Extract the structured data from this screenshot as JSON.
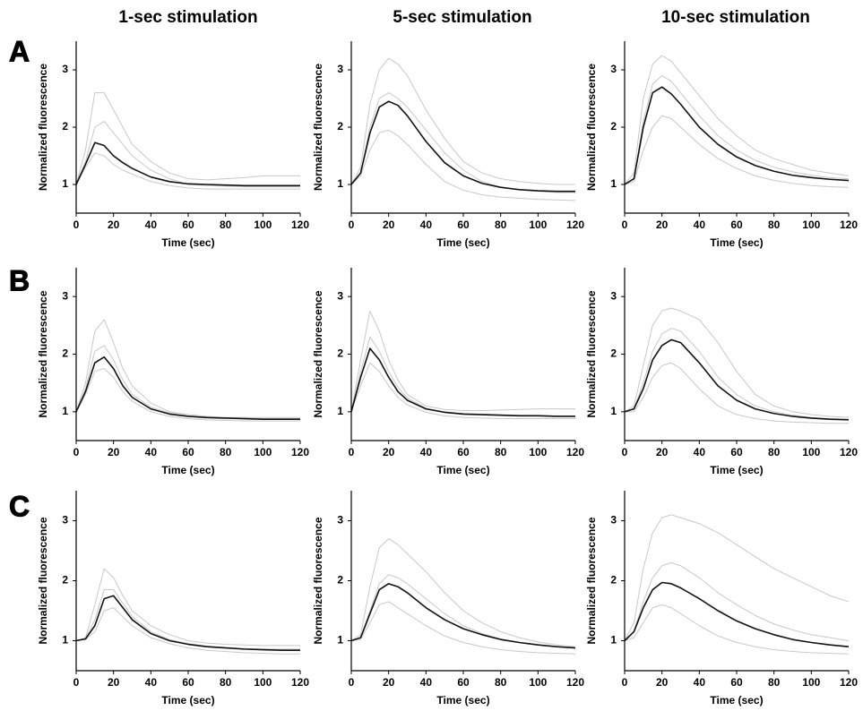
{
  "columns": [
    "1-sec stimulation",
    "5-sec stimulation",
    "10-sec stimulation"
  ],
  "rows": [
    "A",
    "B",
    "C"
  ],
  "chart_data": [
    {
      "type": "line",
      "xlabel": "Time (sec)",
      "ylabel": "Normalized fluorescence",
      "xlim": [
        0,
        120
      ],
      "xticks": [
        0,
        20,
        40,
        60,
        80,
        100,
        120
      ],
      "ylim": [
        0.5,
        3.5
      ],
      "yticks": [
        1,
        2,
        3
      ],
      "x": [
        0,
        5,
        10,
        15,
        20,
        25,
        30,
        40,
        50,
        60,
        70,
        80,
        90,
        100,
        110,
        120
      ],
      "series": [
        {
          "color": "#c8c8c8",
          "values": [
            1,
            1.6,
            2.6,
            2.6,
            2.3,
            2.0,
            1.7,
            1.4,
            1.2,
            1.1,
            1.08,
            1.1,
            1.12,
            1.15,
            1.15,
            1.15
          ]
        },
        {
          "color": "#c8c8c8",
          "values": [
            1,
            1.4,
            2.0,
            2.1,
            1.9,
            1.7,
            1.5,
            1.25,
            1.1,
            1.0,
            0.98,
            0.97,
            0.96,
            0.96,
            0.96,
            0.96
          ]
        },
        {
          "color": "#c8c8c8",
          "values": [
            1,
            1.3,
            1.55,
            1.5,
            1.35,
            1.25,
            1.18,
            1.05,
            0.98,
            0.94,
            0.92,
            0.92,
            0.92,
            0.92,
            0.92,
            0.92
          ]
        },
        {
          "color": "#111111",
          "values": [
            1,
            1.35,
            1.73,
            1.68,
            1.5,
            1.38,
            1.28,
            1.13,
            1.05,
            1.01,
            1.0,
            0.99,
            0.98,
            0.98,
            0.98,
            0.98
          ]
        }
      ]
    },
    {
      "type": "line",
      "xlabel": "Time (sec)",
      "ylabel": "Normalized fluorescence",
      "xlim": [
        0,
        120
      ],
      "xticks": [
        0,
        20,
        40,
        60,
        80,
        100,
        120
      ],
      "ylim": [
        0.5,
        3.5
      ],
      "yticks": [
        1,
        2,
        3
      ],
      "x": [
        0,
        5,
        10,
        15,
        20,
        25,
        30,
        40,
        50,
        60,
        70,
        80,
        90,
        100,
        110,
        120
      ],
      "series": [
        {
          "color": "#c8c8c8",
          "values": [
            1,
            1.3,
            2.4,
            3.0,
            3.2,
            3.1,
            2.9,
            2.3,
            1.8,
            1.4,
            1.2,
            1.1,
            1.05,
            1.02,
            1.0,
            1.0
          ]
        },
        {
          "color": "#c8c8c8",
          "values": [
            1,
            1.2,
            2.0,
            2.5,
            2.6,
            2.5,
            2.35,
            1.95,
            1.55,
            1.25,
            1.05,
            0.95,
            0.9,
            0.88,
            0.86,
            0.86
          ]
        },
        {
          "color": "#c8c8c8",
          "values": [
            1,
            1.15,
            1.6,
            1.9,
            1.95,
            1.85,
            1.7,
            1.35,
            1.05,
            0.9,
            0.82,
            0.78,
            0.76,
            0.74,
            0.73,
            0.72
          ]
        },
        {
          "color": "#111111",
          "values": [
            1,
            1.2,
            1.9,
            2.35,
            2.45,
            2.38,
            2.2,
            1.75,
            1.38,
            1.15,
            1.02,
            0.95,
            0.91,
            0.89,
            0.88,
            0.88
          ]
        }
      ]
    },
    {
      "type": "line",
      "xlabel": "Time (sec)",
      "ylabel": "Normalized fluorescence",
      "xlim": [
        0,
        120
      ],
      "xticks": [
        0,
        20,
        40,
        60,
        80,
        100,
        120
      ],
      "ylim": [
        0.5,
        3.5
      ],
      "yticks": [
        1,
        2,
        3
      ],
      "x": [
        0,
        5,
        10,
        15,
        20,
        25,
        30,
        40,
        50,
        60,
        70,
        80,
        90,
        100,
        110,
        120
      ],
      "series": [
        {
          "color": "#c8c8c8",
          "values": [
            1,
            1.2,
            2.5,
            3.1,
            3.25,
            3.15,
            2.95,
            2.55,
            2.15,
            1.85,
            1.6,
            1.45,
            1.35,
            1.25,
            1.2,
            1.15
          ]
        },
        {
          "color": "#c8c8c8",
          "values": [
            1,
            1.1,
            2.1,
            2.75,
            2.9,
            2.8,
            2.6,
            2.2,
            1.85,
            1.6,
            1.42,
            1.3,
            1.22,
            1.16,
            1.12,
            1.1
          ]
        },
        {
          "color": "#c8c8c8",
          "values": [
            1,
            1.05,
            1.6,
            2.0,
            2.2,
            2.15,
            2.0,
            1.7,
            1.45,
            1.28,
            1.15,
            1.07,
            1.02,
            0.98,
            0.96,
            0.95
          ]
        },
        {
          "color": "#111111",
          "values": [
            1,
            1.1,
            2.0,
            2.6,
            2.7,
            2.58,
            2.4,
            2.0,
            1.7,
            1.48,
            1.33,
            1.23,
            1.16,
            1.12,
            1.09,
            1.07
          ]
        }
      ]
    },
    {
      "type": "line",
      "xlabel": "Time (sec)",
      "ylabel": "Normalized fluorescence",
      "xlim": [
        0,
        120
      ],
      "xticks": [
        0,
        20,
        40,
        60,
        80,
        100,
        120
      ],
      "ylim": [
        0.5,
        3.5
      ],
      "yticks": [
        1,
        2,
        3
      ],
      "x": [
        0,
        5,
        10,
        15,
        20,
        25,
        30,
        40,
        50,
        60,
        70,
        80,
        90,
        100,
        110,
        120
      ],
      "series": [
        {
          "color": "#c8c8c8",
          "values": [
            1,
            1.5,
            2.4,
            2.6,
            2.2,
            1.75,
            1.45,
            1.15,
            1.0,
            0.95,
            0.92,
            0.9,
            0.9,
            0.9,
            0.9,
            0.9
          ]
        },
        {
          "color": "#c8c8c8",
          "values": [
            1,
            1.4,
            2.05,
            2.15,
            1.9,
            1.55,
            1.3,
            1.08,
            0.98,
            0.93,
            0.91,
            0.9,
            0.89,
            0.88,
            0.88,
            0.88
          ]
        },
        {
          "color": "#c8c8c8",
          "values": [
            1,
            1.3,
            1.7,
            1.75,
            1.6,
            1.35,
            1.18,
            1.0,
            0.92,
            0.88,
            0.86,
            0.85,
            0.84,
            0.84,
            0.84,
            0.84
          ]
        },
        {
          "color": "#111111",
          "values": [
            1,
            1.35,
            1.85,
            1.95,
            1.75,
            1.45,
            1.25,
            1.05,
            0.96,
            0.92,
            0.9,
            0.89,
            0.88,
            0.87,
            0.87,
            0.87
          ]
        }
      ]
    },
    {
      "type": "line",
      "xlabel": "Time (sec)",
      "ylabel": "Normalized fluorescence",
      "xlim": [
        0,
        120
      ],
      "xticks": [
        0,
        20,
        40,
        60,
        80,
        100,
        120
      ],
      "ylim": [
        0.5,
        3.5
      ],
      "yticks": [
        1,
        2,
        3
      ],
      "x": [
        0,
        5,
        10,
        15,
        20,
        25,
        30,
        40,
        50,
        60,
        70,
        80,
        90,
        100,
        110,
        120
      ],
      "series": [
        {
          "color": "#c8c8c8",
          "values": [
            1,
            1.9,
            2.75,
            2.4,
            1.9,
            1.55,
            1.3,
            1.1,
            1.04,
            1.02,
            1.02,
            1.03,
            1.04,
            1.05,
            1.05,
            1.05
          ]
        },
        {
          "color": "#c8c8c8",
          "values": [
            1,
            1.7,
            2.3,
            2.05,
            1.7,
            1.42,
            1.24,
            1.06,
            1.0,
            0.97,
            0.96,
            0.95,
            0.94,
            0.94,
            0.93,
            0.93
          ]
        },
        {
          "color": "#c8c8c8",
          "values": [
            1,
            1.45,
            1.85,
            1.7,
            1.45,
            1.25,
            1.12,
            0.99,
            0.93,
            0.9,
            0.89,
            0.88,
            0.88,
            0.88,
            0.88,
            0.88
          ]
        },
        {
          "color": "#111111",
          "values": [
            1,
            1.6,
            2.1,
            1.9,
            1.6,
            1.35,
            1.2,
            1.05,
            0.99,
            0.96,
            0.95,
            0.94,
            0.93,
            0.93,
            0.92,
            0.92
          ]
        }
      ]
    },
    {
      "type": "line",
      "xlabel": "Time (sec)",
      "ylabel": "Normalized fluorescence",
      "xlim": [
        0,
        120
      ],
      "xticks": [
        0,
        20,
        40,
        60,
        80,
        100,
        120
      ],
      "ylim": [
        0.5,
        3.5
      ],
      "yticks": [
        1,
        2,
        3
      ],
      "x": [
        0,
        5,
        10,
        15,
        20,
        25,
        30,
        40,
        50,
        60,
        70,
        80,
        90,
        100,
        110,
        120
      ],
      "series": [
        {
          "color": "#c8c8c8",
          "values": [
            1,
            1.1,
            1.8,
            2.5,
            2.75,
            2.8,
            2.75,
            2.6,
            2.2,
            1.7,
            1.3,
            1.1,
            1.0,
            0.95,
            0.92,
            0.9
          ]
        },
        {
          "color": "#c8c8c8",
          "values": [
            1,
            1.05,
            1.5,
            2.05,
            2.35,
            2.45,
            2.4,
            2.05,
            1.6,
            1.3,
            1.1,
            1.0,
            0.94,
            0.9,
            0.88,
            0.87
          ]
        },
        {
          "color": "#c8c8c8",
          "values": [
            1,
            1.0,
            1.25,
            1.6,
            1.8,
            1.85,
            1.75,
            1.4,
            1.1,
            0.95,
            0.88,
            0.84,
            0.82,
            0.81,
            0.8,
            0.8
          ]
        },
        {
          "color": "#111111",
          "values": [
            1,
            1.05,
            1.4,
            1.9,
            2.15,
            2.25,
            2.2,
            1.85,
            1.45,
            1.2,
            1.05,
            0.97,
            0.92,
            0.89,
            0.87,
            0.86
          ]
        }
      ]
    },
    {
      "type": "line",
      "xlabel": "Time (sec)",
      "ylabel": "Normalized fluorescence",
      "xlim": [
        0,
        120
      ],
      "xticks": [
        0,
        20,
        40,
        60,
        80,
        100,
        120
      ],
      "ylim": [
        0.5,
        3.5
      ],
      "yticks": [
        1,
        2,
        3
      ],
      "x": [
        0,
        5,
        10,
        15,
        20,
        25,
        30,
        40,
        50,
        60,
        70,
        80,
        90,
        100,
        110,
        120
      ],
      "series": [
        {
          "color": "#c8c8c8",
          "values": [
            1,
            1.05,
            1.6,
            2.2,
            2.05,
            1.75,
            1.5,
            1.25,
            1.1,
            1.0,
            0.96,
            0.94,
            0.93,
            0.92,
            0.92,
            0.92
          ]
        },
        {
          "color": "#c8c8c8",
          "values": [
            1,
            1.04,
            1.35,
            1.85,
            1.85,
            1.62,
            1.4,
            1.15,
            1.02,
            0.95,
            0.91,
            0.89,
            0.87,
            0.86,
            0.86,
            0.86
          ]
        },
        {
          "color": "#c8c8c8",
          "values": [
            1,
            1.02,
            1.15,
            1.5,
            1.55,
            1.4,
            1.25,
            1.05,
            0.95,
            0.88,
            0.84,
            0.82,
            0.8,
            0.79,
            0.78,
            0.78
          ]
        },
        {
          "color": "#111111",
          "values": [
            1,
            1.03,
            1.25,
            1.7,
            1.75,
            1.55,
            1.35,
            1.12,
            1.0,
            0.94,
            0.9,
            0.88,
            0.86,
            0.85,
            0.84,
            0.84
          ]
        }
      ]
    },
    {
      "type": "line",
      "xlabel": "Time (sec)",
      "ylabel": "Normalized fluorescence",
      "xlim": [
        0,
        120
      ],
      "xticks": [
        0,
        20,
        40,
        60,
        80,
        100,
        120
      ],
      "ylim": [
        0.5,
        3.5
      ],
      "yticks": [
        1,
        2,
        3
      ],
      "x": [
        0,
        5,
        10,
        15,
        20,
        25,
        30,
        40,
        50,
        60,
        70,
        80,
        90,
        100,
        110,
        120
      ],
      "series": [
        {
          "color": "#c8c8c8",
          "values": [
            1,
            1.1,
            1.9,
            2.55,
            2.7,
            2.6,
            2.45,
            2.15,
            1.8,
            1.5,
            1.3,
            1.15,
            1.05,
            0.98,
            0.93,
            0.9
          ]
        },
        {
          "color": "#c8c8c8",
          "values": [
            1,
            1.05,
            1.5,
            1.95,
            2.1,
            2.05,
            1.95,
            1.7,
            1.45,
            1.25,
            1.12,
            1.03,
            0.97,
            0.93,
            0.9,
            0.88
          ]
        },
        {
          "color": "#c8c8c8",
          "values": [
            1,
            1.02,
            1.3,
            1.6,
            1.65,
            1.55,
            1.45,
            1.25,
            1.08,
            0.97,
            0.9,
            0.85,
            0.82,
            0.8,
            0.79,
            0.78
          ]
        },
        {
          "color": "#111111",
          "values": [
            1,
            1.05,
            1.45,
            1.85,
            1.95,
            1.9,
            1.8,
            1.55,
            1.35,
            1.2,
            1.1,
            1.02,
            0.97,
            0.93,
            0.9,
            0.88
          ]
        }
      ]
    },
    {
      "type": "line",
      "xlabel": "Time (sec)",
      "ylabel": "Normalized fluorescence",
      "xlim": [
        0,
        120
      ],
      "xticks": [
        0,
        20,
        40,
        60,
        80,
        100,
        120
      ],
      "ylim": [
        0.5,
        3.5
      ],
      "yticks": [
        1,
        2,
        3
      ],
      "x": [
        0,
        5,
        10,
        15,
        20,
        25,
        30,
        40,
        50,
        60,
        70,
        80,
        90,
        100,
        110,
        120
      ],
      "series": [
        {
          "color": "#c8c8c8",
          "values": [
            1,
            1.3,
            2.2,
            2.8,
            3.05,
            3.1,
            3.05,
            2.95,
            2.8,
            2.6,
            2.4,
            2.2,
            2.05,
            1.9,
            1.75,
            1.65
          ]
        },
        {
          "color": "#c8c8c8",
          "values": [
            1,
            1.15,
            1.65,
            2.05,
            2.25,
            2.3,
            2.25,
            2.05,
            1.8,
            1.6,
            1.42,
            1.28,
            1.18,
            1.1,
            1.05,
            1.0
          ]
        },
        {
          "color": "#c8c8c8",
          "values": [
            1,
            1.05,
            1.3,
            1.55,
            1.6,
            1.55,
            1.45,
            1.25,
            1.08,
            0.97,
            0.9,
            0.85,
            0.82,
            0.8,
            0.79,
            0.78
          ]
        },
        {
          "color": "#111111",
          "values": [
            1,
            1.15,
            1.55,
            1.85,
            1.97,
            1.95,
            1.88,
            1.7,
            1.5,
            1.33,
            1.2,
            1.1,
            1.02,
            0.97,
            0.93,
            0.9
          ]
        }
      ]
    }
  ]
}
